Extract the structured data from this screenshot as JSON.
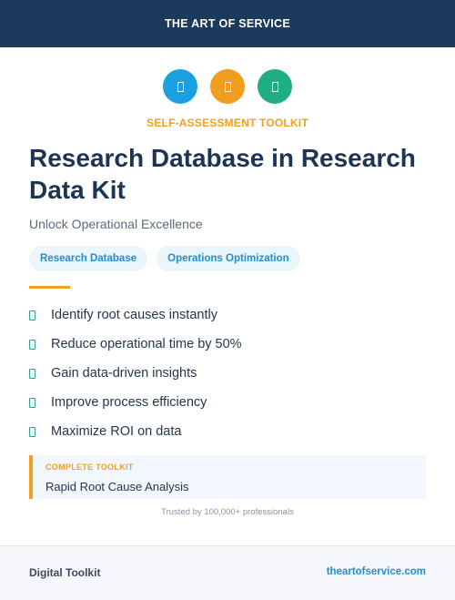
{
  "header": {
    "brand": "THE ART OF SERVICE"
  },
  "icons": [
    {
      "name": "document-icon",
      "color": "#1a9fe0"
    },
    {
      "name": "document-icon",
      "color": "#f19d1d"
    },
    {
      "name": "document-icon",
      "color": "#1fae82"
    }
  ],
  "eyebrow": "SELF-ASSESSMENT TOOLKIT",
  "title": "Research Database in Research Data Kit",
  "subtitle": "Unlock Operational Excellence",
  "tags": [
    "Research Database",
    "Operations Optimization"
  ],
  "features": [
    "Identify root causes instantly",
    "Reduce operational time by 50%",
    "Gain data-driven insights",
    "Improve process efficiency",
    "Maximize ROI on data"
  ],
  "callout": {
    "label": "COMPLETE TOOLKIT",
    "value": "Rapid Root Cause Analysis"
  },
  "trusted": "Trusted by 100,000+ professionals",
  "footer": {
    "left": "Digital Toolkit",
    "right": "theartofservice.com"
  }
}
